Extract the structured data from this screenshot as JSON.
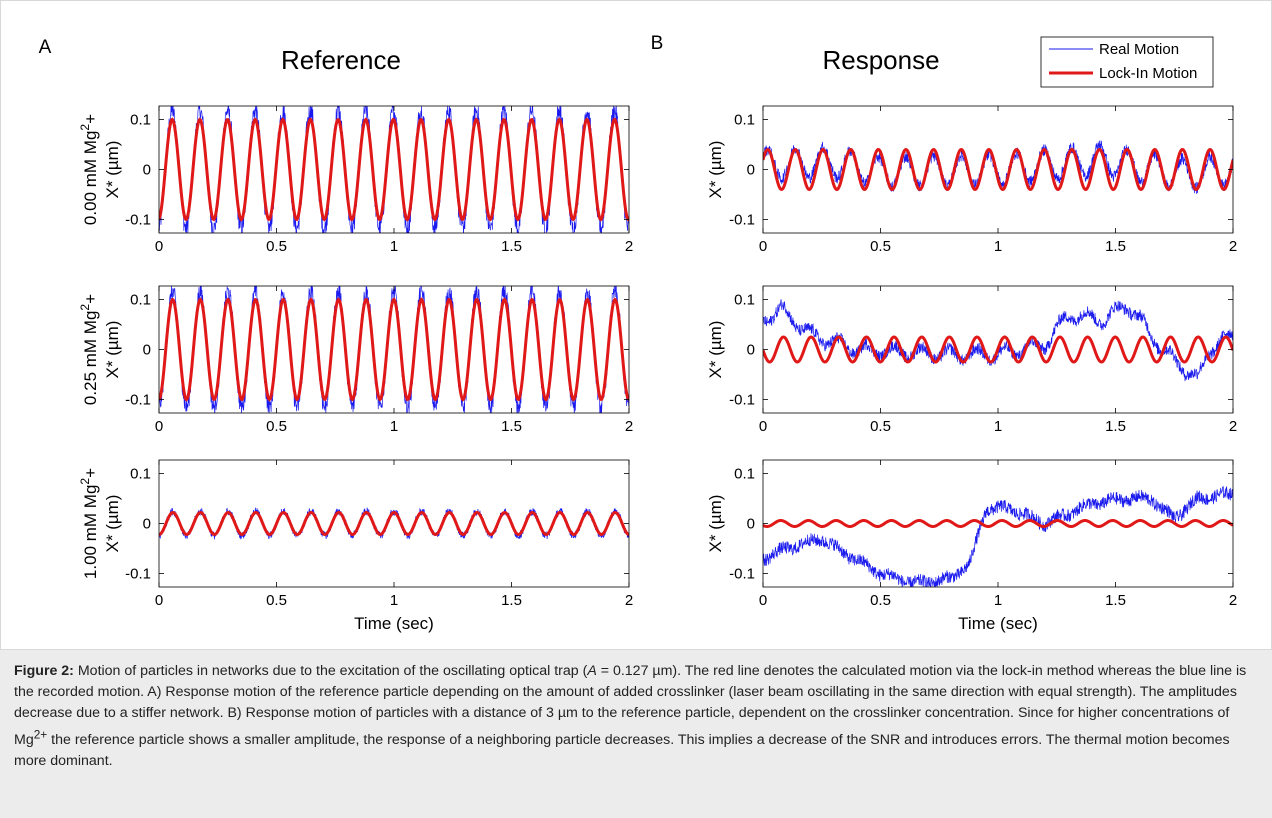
{
  "panels": {
    "A": {
      "label": "A",
      "title": "Reference"
    },
    "B": {
      "label": "B",
      "title": "Response"
    }
  },
  "legend": [
    "Real Motion",
    "Lock-In Motion"
  ],
  "colors": {
    "real": "#1a1aee",
    "lockin": "#e01818"
  },
  "caption": {
    "lead": "Figure 2:",
    "parts": [
      {
        "t": " Motion of particles in networks due to the excitation of the oscillating optical trap ("
      },
      {
        "t": "A",
        "i": true
      },
      {
        "t": " = 0.127 µm). The red line denotes the calculated motion via the lock-in method whereas the blue line is the recorded motion. A) Response motion of the reference particle depending on the amount of added crosslinker (laser beam oscillating in the same direction with equal strength). The amplitudes decrease due to a stiffer network. B) Response motion of particles with a distance of 3 µm to the reference particle, dependent on the crosslinker concentration. Since for higher concentrations of Mg"
      },
      {
        "t": "2+",
        "sup": true
      },
      {
        "t": " the reference particle shows a smaller amplitude, the response of a neighboring particle decreases. This implies a decrease of the SNR and introduces errors. The thermal motion becomes more dominant."
      }
    ]
  },
  "chart_data": [
    {
      "type": "line",
      "panel": "A",
      "ylabel_lines": [
        {
          "main": "0.00 mM Mg",
          "sup": "2",
          "post": "+"
        },
        {
          "main": "X* (µm)"
        }
      ],
      "xlabel": "",
      "xlim": [
        0,
        2
      ],
      "ylim": [
        -0.127,
        0.127
      ],
      "xticks": [
        0,
        0.5,
        1,
        1.5,
        2
      ],
      "xtick_labels": [
        "0",
        "0.5",
        "1",
        "1.5",
        "2"
      ],
      "yticks": [
        -0.1,
        0,
        0.1
      ],
      "ytick_labels": [
        "-0.1",
        "0",
        "0.1"
      ],
      "frequency_hz": 8.5,
      "series": [
        {
          "name": "Lock-In Motion",
          "amplitude": 0.1,
          "phase": 4.85
        },
        {
          "name": "Real Motion",
          "amplitude": 0.118,
          "drift": [],
          "noise": 0.02
        }
      ]
    },
    {
      "type": "line",
      "panel": "A",
      "ylabel_lines": [
        {
          "main": "0.25 mM Mg",
          "sup": "2",
          "post": "+"
        },
        {
          "main": "X* (µm)"
        }
      ],
      "xlabel": "",
      "xlim": [
        0,
        2
      ],
      "ylim": [
        -0.127,
        0.127
      ],
      "xticks": [
        0,
        0.5,
        1,
        1.5,
        2
      ],
      "xtick_labels": [
        "0",
        "0.5",
        "1",
        "1.5",
        "2"
      ],
      "yticks": [
        -0.1,
        0,
        0.1
      ],
      "ytick_labels": [
        "-0.1",
        "0",
        "0.1"
      ],
      "frequency_hz": 8.5,
      "series": [
        {
          "name": "Lock-In Motion",
          "amplitude": 0.1,
          "phase": 4.75
        },
        {
          "name": "Real Motion",
          "amplitude": 0.115,
          "drift": [],
          "noise": 0.02
        }
      ]
    },
    {
      "type": "line",
      "panel": "A",
      "ylabel_lines": [
        {
          "main": "1.00 mM Mg",
          "sup": "2",
          "post": "+"
        },
        {
          "main": "X* (µm)"
        }
      ],
      "xlabel": "Time (sec)",
      "xlim": [
        0,
        2
      ],
      "ylim": [
        -0.127,
        0.127
      ],
      "xticks": [
        0,
        0.5,
        1,
        1.5,
        2
      ],
      "xtick_labels": [
        "0",
        "0.5",
        "1",
        "1.5",
        "2"
      ],
      "yticks": [
        -0.1,
        0,
        0.1
      ],
      "ytick_labels": [
        "-0.1",
        "0",
        "0.1"
      ],
      "frequency_hz": 8.5,
      "series": [
        {
          "name": "Lock-In Motion",
          "amplitude": 0.022,
          "phase": 4.7
        },
        {
          "name": "Real Motion",
          "amplitude": 0.024,
          "drift": [],
          "noise": 0.008
        }
      ]
    },
    {
      "type": "line",
      "panel": "B",
      "ylabel_lines": [
        {
          "main": "X* (µm)"
        }
      ],
      "xlabel": "",
      "xlim": [
        0,
        2
      ],
      "ylim": [
        -0.127,
        0.127
      ],
      "xticks": [
        0,
        0.5,
        1,
        1.5,
        2
      ],
      "xtick_labels": [
        "0",
        "0.5",
        "1",
        "1.5",
        "2"
      ],
      "yticks": [
        -0.1,
        0,
        0.1
      ],
      "ytick_labels": [
        "-0.1",
        "0",
        "0.1"
      ],
      "frequency_hz": 8.5,
      "series": [
        {
          "name": "Lock-In Motion",
          "amplitude": 0.04,
          "phase": 0.5
        },
        {
          "name": "Real Motion",
          "amplitude": 0.03,
          "drift": [
            [
              0,
              0.01
            ],
            [
              0.3,
              0.015
            ],
            [
              0.5,
              -0.005
            ],
            [
              1,
              0
            ],
            [
              1.45,
              0.02
            ],
            [
              1.6,
              0.005
            ],
            [
              1.8,
              -0.01
            ],
            [
              2,
              0
            ]
          ],
          "noise": 0.012
        }
      ]
    },
    {
      "type": "line",
      "panel": "B",
      "ylabel_lines": [
        {
          "main": "X* (µm)"
        }
      ],
      "xlabel": "",
      "xlim": [
        0,
        2
      ],
      "ylim": [
        -0.127,
        0.127
      ],
      "xticks": [
        0,
        0.5,
        1,
        1.5,
        2
      ],
      "xtick_labels": [
        "0",
        "0.5",
        "1",
        "1.5",
        "2"
      ],
      "yticks": [
        -0.1,
        0,
        0.1
      ],
      "ytick_labels": [
        "-0.1",
        "0",
        "0.1"
      ],
      "frequency_hz": 8.5,
      "series": [
        {
          "name": "Lock-In Motion",
          "amplitude": 0.025,
          "phase": 3.2
        },
        {
          "name": "Real Motion",
          "amplitude": 0.012,
          "drift": [
            [
              0,
              0.06
            ],
            [
              0.08,
              0.08
            ],
            [
              0.2,
              0.03
            ],
            [
              0.4,
              0.0
            ],
            [
              0.8,
              -0.01
            ],
            [
              1.0,
              -0.01
            ],
            [
              1.2,
              0.01
            ],
            [
              1.3,
              0.07
            ],
            [
              1.45,
              0.06
            ],
            [
              1.55,
              0.09
            ],
            [
              1.62,
              0.05
            ],
            [
              1.7,
              0.0
            ],
            [
              1.85,
              -0.06
            ],
            [
              1.9,
              0.0
            ],
            [
              2,
              0.03
            ]
          ],
          "noise": 0.012
        }
      ]
    },
    {
      "type": "line",
      "panel": "B",
      "ylabel_lines": [
        {
          "main": "X* (µm)"
        }
      ],
      "xlabel": "Time (sec)",
      "xlim": [
        0,
        2
      ],
      "ylim": [
        -0.127,
        0.127
      ],
      "xticks": [
        0,
        0.5,
        1,
        1.5,
        2
      ],
      "xtick_labels": [
        "0",
        "0.5",
        "1",
        "1.5",
        "2"
      ],
      "yticks": [
        -0.1,
        0,
        0.1
      ],
      "ytick_labels": [
        "-0.1",
        "0",
        "0.1"
      ],
      "frequency_hz": 8.5,
      "series": [
        {
          "name": "Lock-In Motion",
          "amplitude": 0.006,
          "phase": 3.8
        },
        {
          "name": "Real Motion",
          "amplitude": 0.005,
          "drift": [
            [
              0,
              -0.07
            ],
            [
              0.1,
              -0.05
            ],
            [
              0.25,
              -0.03
            ],
            [
              0.35,
              -0.06
            ],
            [
              0.5,
              -0.1
            ],
            [
              0.65,
              -0.12
            ],
            [
              0.8,
              -0.11
            ],
            [
              0.88,
              -0.08
            ],
            [
              0.95,
              0.03
            ],
            [
              1.05,
              0.03
            ],
            [
              1.2,
              0.0
            ],
            [
              1.4,
              0.04
            ],
            [
              1.55,
              0.05
            ],
            [
              1.65,
              0.05
            ],
            [
              1.75,
              0.01
            ],
            [
              1.85,
              0.05
            ],
            [
              2,
              0.06
            ]
          ],
          "noise": 0.013
        }
      ]
    }
  ]
}
